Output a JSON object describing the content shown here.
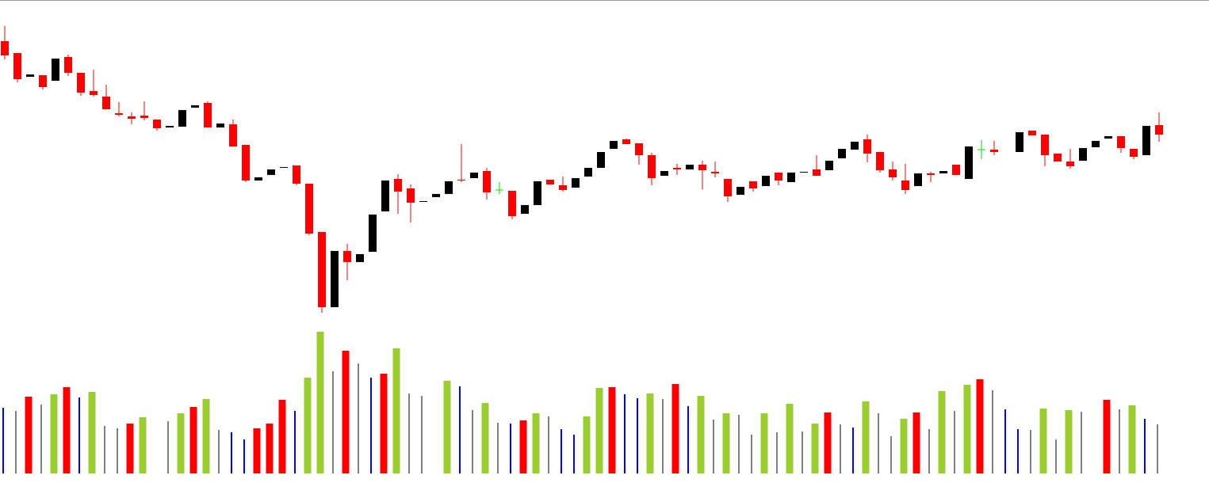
{
  "chart_data": [
    {
      "type": "candlestick",
      "open": [
        348,
        333,
        303,
        305,
        298,
        328,
        308,
        285,
        278,
        257,
        253,
        254,
        249,
        239,
        240,
        264,
        270,
        239,
        243,
        217,
        172,
        179,
        188,
        191,
        168,
        107,
        12,
        83,
        69,
        82,
        133,
        174,
        162,
        145,
        151,
        155,
        173,
        175,
        184,
        160,
        159,
        130,
        141,
        173,
        166,
        163,
        177,
        188,
        212,
        224,
        219,
        204,
        178,
        188,
        186,
        192,
        183,
        174,
        154,
        171,
        165,
        182,
        170,
        182,
        186,
        185,
        200,
        211,
        224,
        208,
        186,
        172,
        165,
        181,
        181,
        192,
        174,
        211,
        211,
        null,
        208,
        235,
        230,
        206,
        196,
        197,
        214,
        225,
        228,
        212,
        204,
        242
      ],
      "high": [
        367,
        333,
        306,
        305,
        326,
        331,
        308,
        312,
        293,
        271,
        258,
        272,
        249,
        241,
        261,
        267,
        272,
        244,
        249,
        217,
        176,
        186,
        189,
        191,
        168,
        107,
        83,
        92,
        79,
        129,
        172,
        180,
        167,
        146,
        155,
        171,
        218,
        182,
        188,
        170,
        159,
        141,
        171,
        173,
        177,
        175,
        188,
        208,
        222,
        225,
        219,
        207,
        184,
        193,
        192,
        197,
        196,
        174,
        164,
        171,
        178,
        182,
        182,
        183,
        204,
        197,
        212,
        221,
        230,
        208,
        196,
        193,
        181,
        183,
        184,
        192,
        215,
        223,
        222,
        null,
        233,
        235,
        230,
        206,
        212,
        213,
        222,
        228,
        228,
        212,
        241,
        258
      ],
      "low": [
        325,
        296,
        303,
        287,
        298,
        304,
        279,
        278,
        262,
        253,
        243,
        248,
        235,
        239,
        240,
        264,
        239,
        239,
        215,
        170,
        172,
        179,
        188,
        166,
        103,
        5,
        12,
        46,
        69,
        82,
        133,
        130,
        119,
        145,
        151,
        155,
        170,
        175,
        148,
        155,
        123,
        130,
        141,
        167,
        158,
        163,
        177,
        188,
        212,
        218,
        192,
        166,
        178,
        179,
        186,
        161,
        176,
        145,
        154,
        158,
        165,
        166,
        170,
        182,
        178,
        185,
        200,
        211,
        195,
        182,
        172,
        155,
        165,
        170,
        181,
        179,
        174,
        199,
        204,
        null,
        208,
        229,
        190,
        196,
        187,
        197,
        214,
        225,
        207,
        199,
        204,
        221
      ],
      "close": [
        330,
        300,
        306,
        290,
        326,
        308,
        283,
        280,
        262,
        255,
        250,
        251,
        238,
        241,
        261,
        267,
        239,
        244,
        215,
        172,
        176,
        186,
        189,
        168,
        105,
        12,
        83,
        69,
        79,
        129,
        172,
        158,
        144,
        146,
        155,
        171,
        172,
        182,
        157,
        160,
        127,
        141,
        171,
        167,
        160,
        175,
        188,
        208,
        222,
        218,
        204,
        175,
        184,
        186,
        192,
        185,
        181,
        152,
        164,
        162,
        178,
        172,
        182,
        183,
        178,
        197,
        212,
        221,
        206,
        185,
        176,
        160,
        181,
        179,
        184,
        179,
        215,
        211,
        208,
        null,
        233,
        229,
        204,
        196,
        190,
        213,
        222,
        228,
        213,
        202,
        241,
        230
      ],
      "colors": {
        "up": "#000000",
        "down": "#ff0000",
        "flat": "#00dd00"
      },
      "ylim": [
        0,
        400
      ]
    },
    {
      "type": "bar",
      "values": [
        83,
        79,
        97,
        87,
        100,
        109,
        96,
        103,
        60,
        57,
        63,
        71,
        null,
        66,
        76,
        84,
        94,
        55,
        52,
        43,
        57,
        63,
        93,
        79,
        121,
        179,
        129,
        155,
        139,
        121,
        126,
        158,
        101,
        98,
        null,
        117,
        110,
        80,
        89,
        64,
        63,
        67,
        76,
        72,
        56,
        49,
        72,
        108,
        109,
        100,
        95,
        101,
        94,
        113,
        85,
        98,
        68,
        76,
        74,
        49,
        76,
        52,
        88,
        53,
        63,
        77,
        62,
        58,
        91,
        76,
        47,
        69,
        77,
        56,
        104,
        79,
        112,
        119,
        105,
        81,
        56,
        55,
        82,
        43,
        80,
        78,
        null,
        93,
        81,
        86,
        69,
        62
      ],
      "colors": [
        "#0000ff",
        "#808080",
        "#ff0000",
        "#808080",
        "#9acd32",
        "#ff0000",
        "#0000ff",
        "#9acd32",
        "#808080",
        "#808080",
        "#ff0000",
        "#9acd32",
        null,
        "#808080",
        "#9acd32",
        "#ff0000",
        "#9acd32",
        "#808080",
        "#0000ff",
        "#0000ff",
        "#ff0000",
        "#ff0000",
        "#ff0000",
        "#0000ff",
        "#9acd32",
        "#9acd32",
        "#808080",
        "#ff0000",
        "#808080",
        "#0000ff",
        "#ff0000",
        "#9acd32",
        "#808080",
        "#808080",
        null,
        "#9acd32",
        "#0000ff",
        "#808080",
        "#9acd32",
        "#808080",
        "#0000ff",
        "#ff0000",
        "#9acd32",
        "#808080",
        "#0000ff",
        "#0000ff",
        "#9acd32",
        "#9acd32",
        "#ff0000",
        "#0000ff",
        "#0000ff",
        "#9acd32",
        "#808080",
        "#ff0000",
        "#0000ff",
        "#9acd32",
        "#808080",
        "#9acd32",
        "#808080",
        "#808080",
        "#9acd32",
        "#808080",
        "#9acd32",
        "#808080",
        "#9acd32",
        "#ff0000",
        "#808080",
        "#0000ff",
        "#9acd32",
        "#808080",
        "#808080",
        "#9acd32",
        "#ff0000",
        "#808080",
        "#9acd32",
        "#808080",
        "#9acd32",
        "#ff0000",
        "#808080",
        "#0000ff",
        "#0000ff",
        "#808080",
        "#9acd32",
        "#808080",
        "#9acd32",
        "#808080",
        null,
        "#ff0000",
        "#808080",
        "#9acd32",
        "#0000ff",
        "#808080"
      ],
      "thin_colors": [
        "#0000ff",
        "#808080"
      ],
      "ylim": [
        0,
        200
      ]
    }
  ]
}
